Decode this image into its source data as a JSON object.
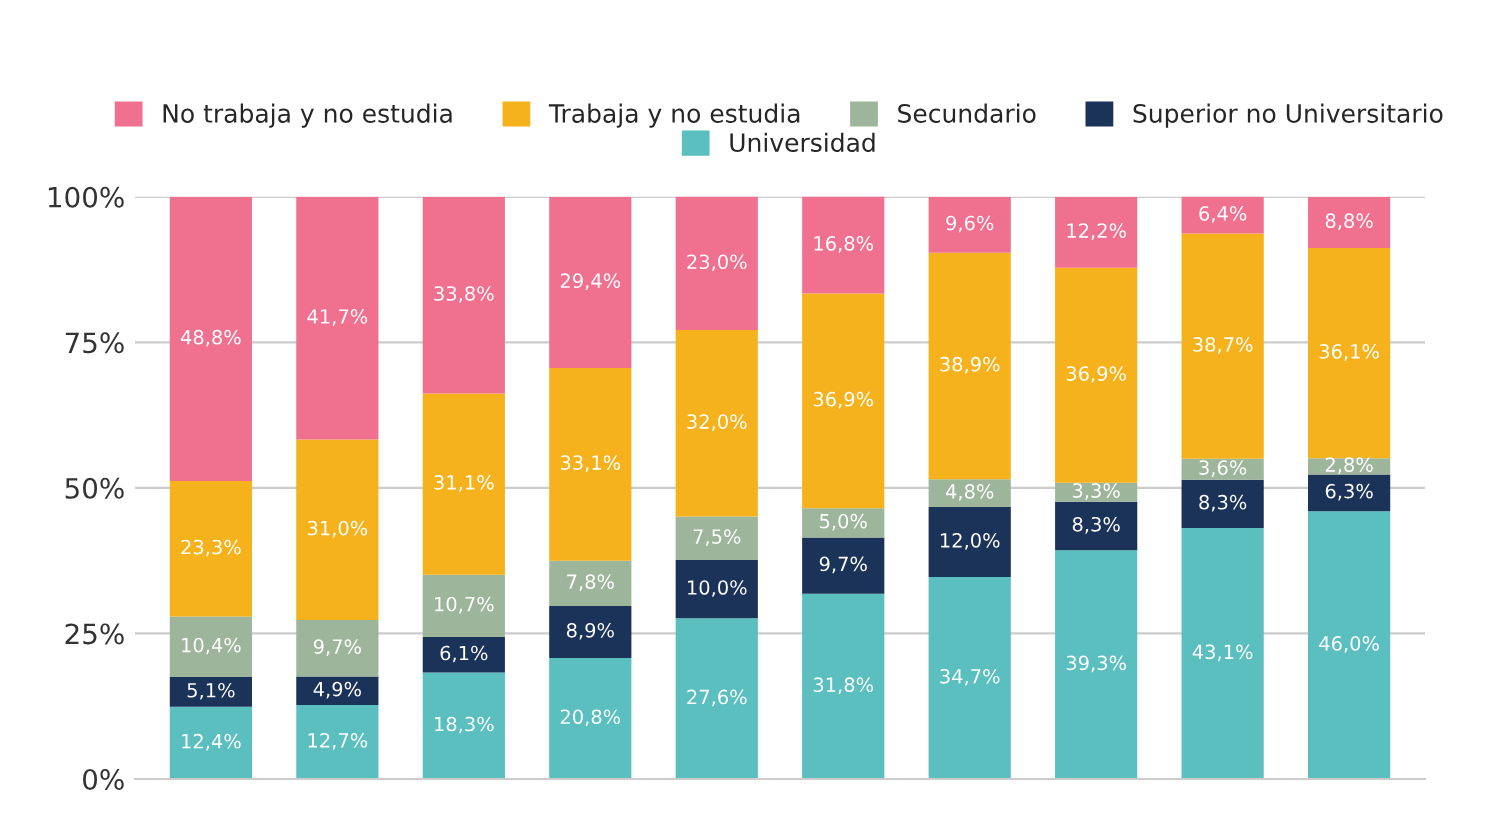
{
  "chart_data": {
    "type": "bar",
    "stacked": true,
    "categories": [
      null,
      null,
      null,
      null,
      null,
      null,
      null,
      null,
      null,
      null
    ],
    "ylim": [
      0,
      100
    ],
    "yticks": [
      {
        "value": 0,
        "label": "0%"
      },
      {
        "value": 25,
        "label": "25%"
      },
      {
        "value": 50,
        "label": "50%"
      },
      {
        "value": 75,
        "label": "75%"
      },
      {
        "value": 100,
        "label": "100%"
      }
    ],
    "grid": "y",
    "legend": "top",
    "series": [
      {
        "name": "Universidad",
        "color": "#5bbfbf",
        "values": [
          12.4,
          12.7,
          18.3,
          20.8,
          27.6,
          31.8,
          34.7,
          39.3,
          43.1,
          46.0
        ],
        "value_labels": [
          "12,4%",
          "12,7%",
          "18,3%",
          "20,8%",
          "27,6%",
          "31,8%",
          "34,7%",
          "39,3%",
          "43,1%",
          "46,0%"
        ]
      },
      {
        "name": "Superior no Universitario",
        "color": "#1b3358",
        "values": [
          5.1,
          4.9,
          6.1,
          8.9,
          10.0,
          9.7,
          12.0,
          8.3,
          8.3,
          6.3
        ],
        "value_labels": [
          "5,1%",
          "4,9%",
          "6,1%",
          "8,9%",
          "10,0%",
          "9,7%",
          "12,0%",
          "8,3%",
          "8,3%",
          "6,3%"
        ]
      },
      {
        "name": "Secundario",
        "color": "#9db59b",
        "values": [
          10.4,
          9.7,
          10.7,
          7.8,
          7.5,
          5.0,
          4.8,
          3.3,
          3.6,
          2.8
        ],
        "value_labels": [
          "10,4%",
          "9,7%",
          "10,7%",
          "7,8%",
          "7,5%",
          "5,0%",
          "4,8%",
          "3,3%",
          "3,6%",
          "2,8%"
        ]
      },
      {
        "name": "Trabaja y no estudia",
        "color": "#f5b21c",
        "values": [
          23.3,
          31.0,
          31.1,
          33.1,
          32.0,
          36.9,
          38.9,
          36.9,
          38.7,
          36.1
        ],
        "value_labels": [
          "23,3%",
          "31,0%",
          "31,1%",
          "33,1%",
          "32,0%",
          "36,9%",
          "38,9%",
          "36,9%",
          "38,7%",
          "36,1%"
        ]
      },
      {
        "name": "No trabaja y no estudia",
        "color": "#f07090",
        "values": [
          48.8,
          41.7,
          33.8,
          29.4,
          23.0,
          16.8,
          9.6,
          12.2,
          6.4,
          8.8
        ],
        "value_labels": [
          "48,8%",
          "41,7%",
          "33,8%",
          "29,4%",
          "23,0%",
          "16,8%",
          "9,6%",
          "12,2%",
          "6,4%",
          "8,8%"
        ]
      }
    ]
  }
}
